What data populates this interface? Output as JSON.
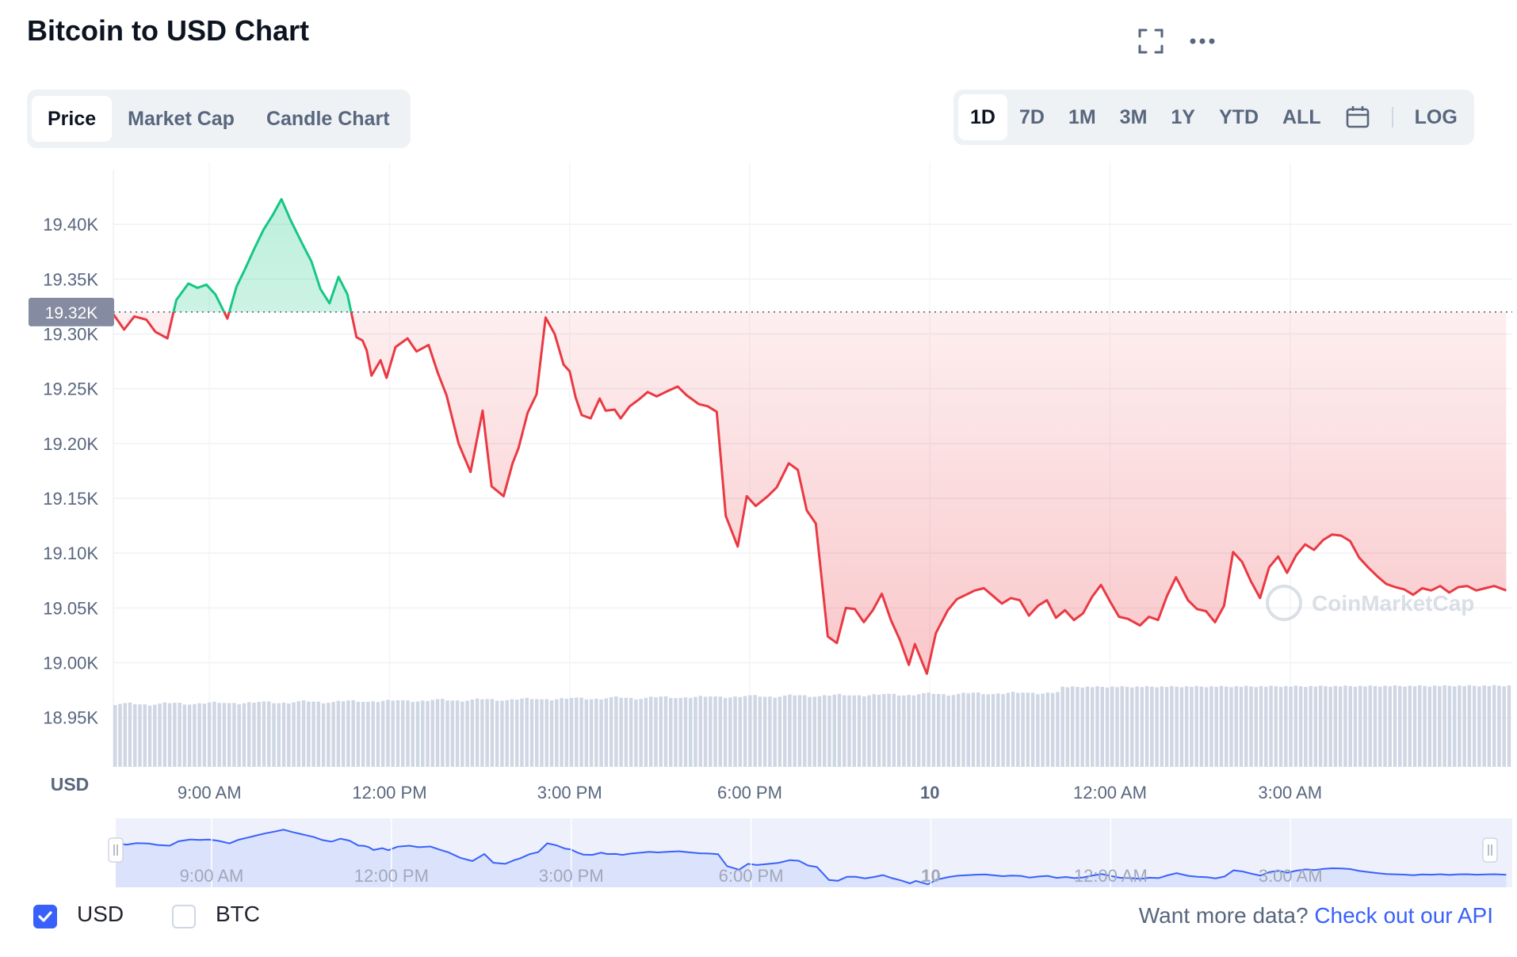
{
  "header": {
    "title": "Bitcoin to USD Chart"
  },
  "icons": {
    "fullscreen": "fullscreen-icon",
    "more": "more-horizontal-icon",
    "calendar": "calendar-icon",
    "check": "checkmark-icon",
    "watermark": "coinmarketcap-logo"
  },
  "tabs": [
    "Price",
    "Market Cap",
    "Candle Chart"
  ],
  "ranges": [
    "1D",
    "7D",
    "1M",
    "3M",
    "1Y",
    "YTD",
    "ALL"
  ],
  "log_label": "LOG",
  "current_price_label": "19.32K",
  "currency_axis_label": "USD",
  "watermark_text": "CoinMarketCap",
  "legend": {
    "usd": "USD",
    "btc": "BTC",
    "usd_checked": true,
    "btc_checked": false
  },
  "api": {
    "prefix": "Want more data? ",
    "link": "Check out our API"
  },
  "colors": {
    "up": "#16c784",
    "down": "#ea3943",
    "navigator": "#3861fb",
    "volume": "#cfd6e4"
  },
  "chart_data": {
    "type": "area",
    "title": "Bitcoin to USD Chart",
    "baseline_price": 19320,
    "y_ticks": [
      "19.40K",
      "19.35K",
      "19.30K",
      "19.25K",
      "19.20K",
      "19.15K",
      "19.10K",
      "19.05K",
      "19.00K",
      "18.95K"
    ],
    "y_tick_values": [
      19400,
      19350,
      19300,
      19250,
      19200,
      19150,
      19100,
      19050,
      19000,
      18950
    ],
    "ylim": [
      18905,
      19450
    ],
    "x_ticks": [
      "9:00 AM",
      "12:00 PM",
      "3:00 PM",
      "6:00 PM",
      "10",
      "12:00 AM",
      "3:00 AM"
    ],
    "x_tick_hours": [
      9,
      12,
      15,
      18,
      21,
      24,
      27
    ],
    "xlim_hours": [
      7.4,
      30.7
    ],
    "series": [
      {
        "x": [
          7.4,
          7.58,
          7.75,
          7.95,
          8.1,
          8.3,
          8.45,
          8.65,
          8.8,
          8.95,
          9.1,
          9.3,
          9.45,
          9.6,
          9.75,
          9.9,
          10.05,
          10.2,
          10.35,
          10.55,
          10.7,
          10.85,
          11.0,
          11.15,
          11.3,
          11.45,
          11.55,
          11.62,
          11.7,
          11.85,
          11.95,
          12.1,
          12.3,
          12.45,
          12.65,
          12.8,
          12.95,
          13.15,
          13.35,
          13.55,
          13.7,
          13.9,
          14.05,
          14.15,
          14.3,
          14.45,
          14.6,
          14.75,
          14.9,
          15.0,
          15.1,
          15.2,
          15.35,
          15.5,
          15.6,
          15.75,
          15.85,
          16.0,
          16.15,
          16.3,
          16.45,
          16.6,
          16.8,
          16.95,
          17.15,
          17.3,
          17.45,
          17.6,
          17.8,
          17.95,
          18.1,
          18.3,
          18.45,
          18.65,
          18.8,
          18.95,
          19.1,
          19.3,
          19.45,
          19.6,
          19.75,
          19.9,
          20.05,
          20.2,
          20.35,
          20.5,
          20.65,
          20.75,
          20.95,
          21.1,
          21.3,
          21.45,
          21.6,
          21.75,
          21.9,
          22.05,
          22.2,
          22.35,
          22.5,
          22.65,
          22.8,
          22.95,
          23.1,
          23.25,
          23.4,
          23.55,
          23.7,
          23.85,
          24.0,
          24.15,
          24.3,
          24.5,
          24.65,
          24.8,
          24.95,
          25.1,
          25.3,
          25.45,
          25.6,
          25.75,
          25.9,
          26.05,
          26.2,
          26.35,
          26.5,
          26.65,
          26.8,
          26.95,
          27.1,
          27.25,
          27.4,
          27.55,
          27.7,
          27.85,
          28.0,
          28.15,
          28.3,
          28.45,
          28.6,
          28.75,
          28.9,
          29.05,
          29.2,
          29.35,
          29.5,
          29.65,
          29.8,
          29.95,
          30.1,
          30.25,
          30.4,
          30.6
        ],
        "values": [
          19318,
          19304,
          19316,
          19313,
          19302,
          19296,
          19331,
          19346,
          19342,
          19345,
          19336,
          19314,
          19343,
          19360,
          19378,
          19395,
          19408,
          19423,
          19404,
          19382,
          19366,
          19341,
          19328,
          19352,
          19336,
          19297,
          19294,
          19285,
          19262,
          19276,
          19260,
          19288,
          19296,
          19284,
          19290,
          19265,
          19244,
          19200,
          19174,
          19230,
          19161,
          19152,
          19182,
          19196,
          19228,
          19245,
          19315,
          19300,
          19272,
          19266,
          19242,
          19226,
          19223,
          19241,
          19230,
          19231,
          19223,
          19234,
          19240,
          19247,
          19243,
          19247,
          19252,
          19244,
          19236,
          19234,
          19229,
          19134,
          19106,
          19152,
          19143,
          19152,
          19160,
          19182,
          19176,
          19139,
          19127,
          19024,
          19018,
          19050,
          19049,
          19037,
          19048,
          19063,
          19039,
          19021,
          18998,
          19017,
          18990,
          19027,
          19048,
          19058,
          19062,
          19066,
          19068,
          19061,
          19054,
          19059,
          19057,
          19043,
          19052,
          19057,
          19041,
          19048,
          19039,
          19045,
          19060,
          19071,
          19056,
          19042,
          19040,
          19034,
          19042,
          19039,
          19061,
          19078,
          19057,
          19049,
          19047,
          19037,
          19052,
          19101,
          19092,
          19074,
          19059,
          19087,
          19097,
          19082,
          19098,
          19108,
          19103,
          19112,
          19117,
          19116,
          19111,
          19096,
          19087,
          19079,
          19072,
          19069,
          19067,
          19062,
          19068,
          19066,
          19070,
          19064,
          19069,
          19070,
          19066,
          19068,
          19070,
          19066
        ]
      }
    ],
    "volume_hint": "gradually increasing bars along the bottom",
    "navigator": {
      "x_ticks": [
        "9:00 AM",
        "12:00 PM",
        "3:00 PM",
        "6:00 PM",
        "10",
        "12:00 AM",
        "3:00 AM"
      ]
    }
  }
}
